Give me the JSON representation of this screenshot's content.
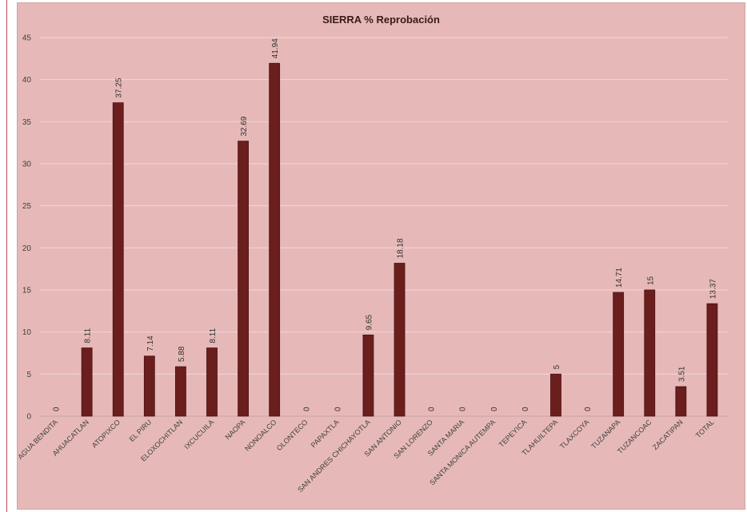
{
  "chart_data": {
    "type": "bar",
    "title": "SIERRA % Reprobación",
    "ylim": [
      0,
      45
    ],
    "yticks": [
      0,
      5,
      10,
      15,
      20,
      25,
      30,
      35,
      40,
      45
    ],
    "grid": true,
    "categories": [
      "AGUA BENDITA",
      "AHUACATLAN",
      "ATOPIXCO",
      "EL PIRU",
      "ELOXOCHITLAN",
      "IXCUCUILA",
      "NAOPA",
      "NONOALCO",
      "OLONTECO",
      "PAPAXTLA",
      "SAN ANDRES CHICHAYOTLA",
      "SAN ANTONIO",
      "SAN LORENZO",
      "SANTA MARIA",
      "SANTA MONICA AUTEMPA",
      "TEPEYICA",
      "TLAHUILTEPA",
      "TLAXCOYA",
      "TUZANAPA",
      "TUZANCOAC",
      "ZACATIPAN",
      "TOTAL"
    ],
    "values": [
      0,
      8.11,
      37.25,
      7.14,
      5.88,
      8.11,
      32.69,
      41.94,
      0,
      0,
      9.65,
      18.18,
      0,
      0,
      0,
      0,
      5,
      0,
      14.71,
      15,
      3.51,
      13.37
    ],
    "colors": {
      "bar": "#6b1e1e",
      "bar_edge": "#4a1010",
      "background": "#e6b9b8",
      "grid": "#f2d6d5"
    }
  }
}
